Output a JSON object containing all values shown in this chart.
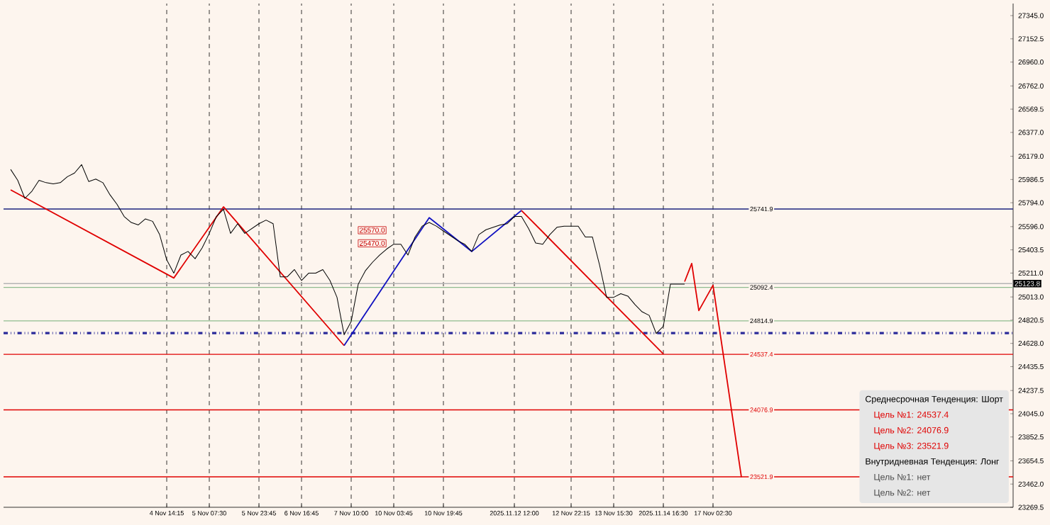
{
  "chart_data": {
    "type": "line",
    "categories": [
      null,
      null,
      null,
      null,
      null,
      null,
      null,
      null,
      null,
      null,
      null,
      null,
      null,
      null,
      null,
      null,
      null,
      null,
      null,
      null,
      null,
      null,
      null,
      "4 Nov 14:15",
      null,
      null,
      null,
      null,
      null,
      "5 Nov 07:30",
      null,
      null,
      null,
      null,
      null,
      null,
      "5 Nov 23:45",
      null,
      null,
      null,
      null,
      null,
      "6 Nov 16:45",
      null,
      null,
      null,
      null,
      null,
      null,
      "7 Nov 10:00",
      null,
      null,
      null,
      null,
      null,
      "10 Nov 03:45",
      null,
      null,
      null,
      null,
      null,
      null,
      "10 Nov 19:45",
      null,
      null,
      null,
      null,
      null,
      null,
      null,
      null,
      null,
      "2025.11.12 12:00",
      null,
      null,
      null,
      null,
      null,
      null,
      null,
      "12 Nov 22:15",
      null,
      null,
      null,
      null,
      null,
      "13 Nov 15:30",
      null,
      null,
      null,
      null,
      null,
      null,
      "2025.11.14 16:30",
      null,
      null,
      null,
      null,
      null,
      null,
      "17 Nov 02:30",
      null,
      null,
      null,
      null,
      null,
      null,
      null,
      null,
      null,
      null,
      null,
      null,
      null,
      null,
      null,
      null,
      null,
      null,
      null,
      null,
      null,
      null,
      null,
      null,
      null,
      null,
      null,
      null,
      null,
      null,
      null,
      null,
      null,
      null,
      null,
      null,
      null,
      null,
      null,
      null,
      null,
      null
    ],
    "ylim": [
      23269.5,
      27445
    ],
    "yticks": [
      {
        "value": 23269.5,
        "label": "23269.5"
      },
      {
        "value": 23462,
        "label": "23462.0"
      },
      {
        "value": 23654.5,
        "label": "23654.5"
      },
      {
        "value": 23852.5,
        "label": "23852.5"
      },
      {
        "value": 24045,
        "label": "24045.0"
      },
      {
        "value": 24237.5,
        "label": "24237.5"
      },
      {
        "value": 24435.5,
        "label": "24435.5"
      },
      {
        "value": 24628,
        "label": "24628.0"
      },
      {
        "value": 24820.5,
        "label": "24820.5"
      },
      {
        "value": 25013,
        "label": "25013.0"
      },
      {
        "value": 25211,
        "label": "25211.0"
      },
      {
        "value": 25403.5,
        "label": "25403.5"
      },
      {
        "value": 25596,
        "label": "25596.0"
      },
      {
        "value": 25794,
        "label": "25794.0"
      },
      {
        "value": 25986.5,
        "label": "25986.5"
      },
      {
        "value": 26179,
        "label": "26179.0"
      },
      {
        "value": 26377,
        "label": "26377.0"
      },
      {
        "value": 26569.5,
        "label": "26569.5"
      },
      {
        "value": 26762,
        "label": "26762.0"
      },
      {
        "value": 26960,
        "label": "26960.0"
      },
      {
        "value": 27152.5,
        "label": "27152.5"
      },
      {
        "value": 27345,
        "label": "27345.0"
      }
    ],
    "grid": "x",
    "series": [
      {
        "color": "#000000",
        "values": [
          null,
          26070,
          25980,
          25830,
          25890,
          25980,
          25960,
          25950,
          25960,
          26010,
          26040,
          26110,
          25970,
          25990,
          25960,
          25860,
          25780,
          25680,
          25630,
          25610,
          25660,
          25640,
          25530,
          25320,
          25210,
          25360,
          25390,
          25330,
          25420,
          25540,
          25680,
          25740,
          25540,
          25620,
          25540,
          25580,
          25620,
          25650,
          25620,
          25180,
          25180,
          25240,
          25150,
          25210,
          25210,
          25240,
          25150,
          25010,
          24700,
          24810,
          25120,
          25230,
          25300,
          25360,
          25410,
          25450,
          25450,
          25360,
          25510,
          25600,
          25630,
          25600,
          25560,
          25520,
          25480,
          25450,
          25390,
          25530,
          25570,
          25590,
          25610,
          25620,
          25680,
          25680,
          25580,
          25460,
          25450,
          25530,
          25590,
          25600,
          25600,
          25600,
          25510,
          25510,
          25280,
          25010,
          25010,
          25040,
          25020,
          24950,
          24890,
          24860,
          24710,
          24770,
          25120,
          25120,
          25120,
          null,
          null,
          null,
          null,
          null,
          null,
          null,
          null,
          null,
          null,
          null,
          null,
          null,
          null,
          null,
          null,
          null,
          null,
          null,
          null,
          null,
          null,
          null,
          null,
          null,
          null,
          null,
          null,
          null,
          null,
          null,
          null,
          null,
          null,
          null,
          null,
          null,
          null,
          null,
          null,
          null,
          null,
          null,
          null,
          null,
          null
        ]
      },
      {
        "color": "#e00000",
        "values": [
          null,
          25900,
          null,
          null,
          null,
          null,
          null,
          null,
          null,
          null,
          null,
          null,
          null,
          null,
          null,
          null,
          null,
          null,
          null,
          null,
          null,
          null,
          null,
          null,
          25170,
          null,
          null,
          null,
          null,
          null,
          null,
          25760,
          null,
          null,
          null,
          null,
          null,
          null,
          null,
          null,
          null,
          null,
          null,
          null,
          null,
          null,
          null,
          null,
          24610,
          null,
          null,
          null,
          null,
          null,
          null,
          null,
          null,
          null,
          null,
          null,
          null,
          null,
          null,
          null,
          null,
          null,
          null,
          null,
          null,
          null,
          null,
          null,
          null,
          null,
          null,
          null,
          null,
          null,
          null,
          null,
          null,
          null,
          null,
          null,
          null,
          null,
          null,
          null,
          null,
          null,
          null,
          null,
          null,
          null,
          null,
          null,
          null,
          null,
          null,
          null,
          null,
          null,
          null,
          null,
          null,
          null,
          null,
          null,
          null,
          null,
          null,
          null,
          null,
          null,
          null,
          null,
          null,
          null,
          null,
          null,
          null,
          null,
          null,
          null,
          null,
          null,
          null,
          null,
          null,
          null,
          null,
          null,
          null,
          null,
          null,
          null,
          null,
          null,
          null,
          null,
          null,
          null,
          null
        ]
      },
      {
        "color": "#1010c0",
        "values": [
          null,
          null,
          null,
          null,
          null,
          null,
          null,
          null,
          null,
          null,
          null,
          null,
          null,
          null,
          null,
          null,
          null,
          null,
          null,
          null,
          null,
          null,
          null,
          null,
          null,
          null,
          null,
          null,
          null,
          null,
          null,
          null,
          null,
          null,
          null,
          null,
          null,
          null,
          null,
          null,
          null,
          null,
          null,
          null,
          null,
          null,
          null,
          null,
          24610,
          null,
          null,
          null,
          null,
          null,
          null,
          null,
          null,
          null,
          null,
          null,
          25670,
          null,
          null,
          null,
          null,
          null,
          25390,
          null,
          null,
          null,
          null,
          null,
          null,
          25730,
          null,
          null,
          null,
          null,
          null,
          null,
          null,
          null,
          null,
          null,
          null,
          null,
          null,
          null,
          null,
          null,
          null,
          null,
          null,
          null,
          null,
          null,
          null,
          null,
          null,
          null,
          null,
          null,
          null,
          null,
          null,
          null,
          null,
          null,
          null,
          null,
          null,
          null,
          null,
          null,
          null,
          null,
          null,
          null,
          null,
          null,
          null,
          null,
          null,
          null,
          null,
          null,
          null,
          null,
          null,
          null,
          null,
          null,
          null,
          null,
          null,
          null,
          null,
          null,
          null,
          null,
          null,
          null,
          null
        ]
      },
      {
        "color": "#e00000",
        "values": [
          null,
          null,
          null,
          null,
          null,
          null,
          null,
          null,
          null,
          null,
          null,
          null,
          null,
          null,
          null,
          null,
          null,
          null,
          null,
          null,
          null,
          null,
          null,
          null,
          null,
          null,
          null,
          null,
          null,
          null,
          null,
          null,
          null,
          null,
          null,
          null,
          null,
          null,
          null,
          null,
          null,
          null,
          null,
          null,
          null,
          null,
          null,
          null,
          null,
          null,
          null,
          null,
          null,
          null,
          null,
          null,
          null,
          null,
          null,
          null,
          null,
          null,
          null,
          null,
          null,
          null,
          null,
          null,
          null,
          null,
          null,
          null,
          null,
          25730,
          null,
          null,
          null,
          null,
          null,
          null,
          null,
          null,
          null,
          null,
          null,
          null,
          null,
          null,
          null,
          null,
          null,
          null,
          null,
          24540,
          null,
          null,
          null,
          null,
          null,
          null,
          null,
          null,
          null,
          null,
          null,
          null,
          null,
          null,
          null,
          null,
          null,
          null,
          null,
          null,
          null,
          null,
          null,
          null,
          null,
          null,
          null,
          null,
          null,
          null,
          null,
          null,
          null,
          null,
          null,
          null,
          null,
          null,
          null,
          null,
          null,
          null,
          null,
          null,
          null,
          null,
          null,
          null,
          null
        ]
      },
      {
        "color": "#e00000",
        "values": [
          null,
          null,
          null,
          null,
          null,
          null,
          null,
          null,
          null,
          null,
          null,
          null,
          null,
          null,
          null,
          null,
          null,
          null,
          null,
          null,
          null,
          null,
          null,
          null,
          null,
          null,
          null,
          null,
          null,
          null,
          null,
          null,
          null,
          null,
          null,
          null,
          null,
          null,
          null,
          null,
          null,
          null,
          null,
          null,
          null,
          null,
          null,
          null,
          null,
          null,
          null,
          null,
          null,
          null,
          null,
          null,
          null,
          null,
          null,
          null,
          null,
          null,
          null,
          null,
          null,
          null,
          null,
          null,
          null,
          null,
          null,
          null,
          null,
          null,
          null,
          null,
          null,
          null,
          null,
          null,
          null,
          null,
          null,
          null,
          null,
          null,
          null,
          null,
          null,
          null,
          null,
          null,
          null,
          null,
          null,
          null,
          25140,
          25290,
          24900,
          null,
          25110,
          null,
          null,
          null,
          23520,
          null,
          null,
          null,
          null,
          null,
          null,
          null,
          null,
          null,
          null,
          null,
          null,
          null,
          null,
          null,
          null,
          null,
          null,
          null,
          null,
          null,
          null,
          null,
          null,
          null,
          null,
          null,
          null,
          null,
          null,
          null,
          null,
          null,
          null,
          null,
          null,
          null,
          null
        ]
      }
    ],
    "ref_lines": [
      {
        "axis": "y",
        "value": 25741.9,
        "label": "25741.9",
        "color": "#1a237e",
        "line_style": "solid"
      },
      {
        "axis": "y",
        "value": 25092.4,
        "label": "25092.4",
        "color": "#8fbc8f",
        "line_style": "solid"
      },
      {
        "axis": "y",
        "value": 24814.9,
        "label": "24814.9",
        "color": "#8fbc8f",
        "line_style": "solid"
      },
      {
        "axis": "y",
        "value": 24714,
        "color": "#2a2a9a",
        "line_style": "dashed"
      },
      {
        "axis": "y",
        "value": 24537.4,
        "label": "24537.4",
        "color": "#e00000",
        "line_style": "solid"
      },
      {
        "axis": "y",
        "value": 24076.9,
        "label": "24076.9",
        "color": "#e00000",
        "line_style": "solid"
      },
      {
        "axis": "y",
        "value": 23521.9,
        "label": "23521.9",
        "color": "#e00000",
        "line_style": "solid"
      },
      {
        "axis": "y",
        "value": 25123.8,
        "label": "25123.8",
        "color": "#b4b4b4",
        "line_style": "solid"
      }
    ],
    "annotations": [
      "25570.0",
      "25470.0",
      "Среднесрочная Тенденция: Шорт",
      "Цель №1: 24537.4",
      "Цель №2: 24076.9",
      "Цель №3: 23521.9",
      "Внутридневная Тенденция: Лонг",
      "Цель №1: нет",
      "Цель №2: нет"
    ]
  }
}
